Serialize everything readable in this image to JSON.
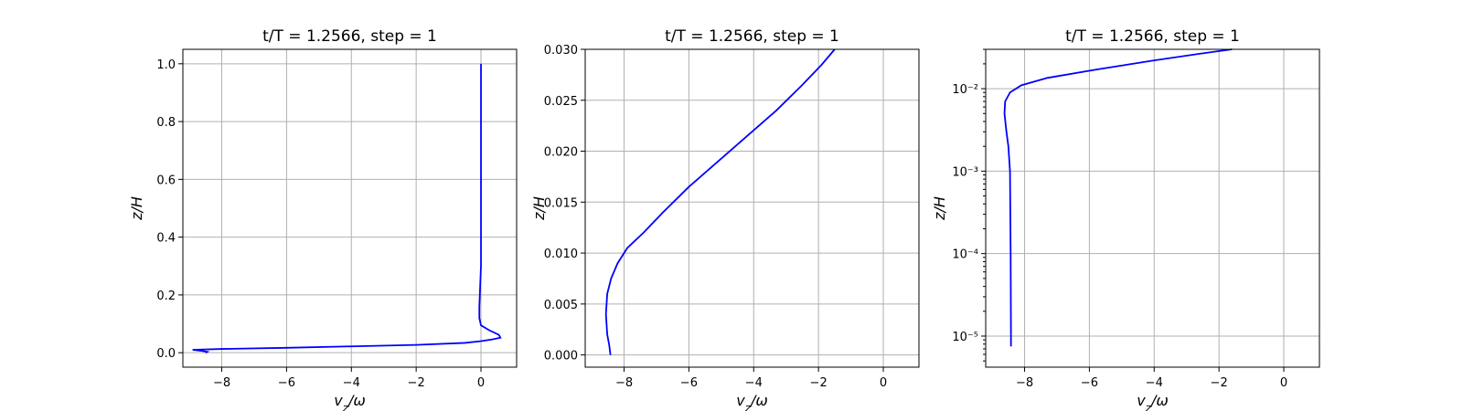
{
  "chart_data": [
    {
      "type": "line",
      "title": "t/T = 1.2566, step = 1",
      "xlabel": "v_z/ω",
      "ylabel": "z/H",
      "xlim": [
        -9.2,
        1.1
      ],
      "ylim": [
        -0.05,
        1.05
      ],
      "yscale": "linear",
      "grid": true,
      "xticks": [
        -8,
        -6,
        -4,
        -2,
        0
      ],
      "xtick_labels": [
        "−8",
        "−6",
        "−4",
        "−2",
        "0"
      ],
      "yticks": [
        0.0,
        0.2,
        0.4,
        0.6,
        0.8,
        1.0
      ],
      "ytick_labels": [
        "0.0",
        "0.2",
        "0.4",
        "0.6",
        "0.8",
        "1.0"
      ],
      "series": [
        {
          "color": "#0000ff",
          "x": [
            -8.5,
            -8.45,
            -8.6,
            -8.9,
            -8.0,
            -6.0,
            -4.0,
            -2.0,
            -0.5,
            0.0,
            0.35,
            0.6,
            0.55,
            0.25,
            0.0,
            -0.05,
            -0.05,
            0.0,
            0.0,
            0.0
          ],
          "y": [
            0.0,
            0.003,
            0.006,
            0.01,
            0.013,
            0.017,
            0.022,
            0.027,
            0.034,
            0.04,
            0.046,
            0.052,
            0.062,
            0.078,
            0.095,
            0.12,
            0.16,
            0.3,
            0.6,
            1.0
          ]
        }
      ]
    },
    {
      "type": "line",
      "title": "t/T = 1.2566, step = 1",
      "xlabel": "v_z/ω",
      "ylabel": "z/H",
      "xlim": [
        -9.2,
        1.1
      ],
      "ylim": [
        -0.0012,
        0.03
      ],
      "yscale": "linear",
      "grid": true,
      "xticks": [
        -8,
        -6,
        -4,
        -2,
        0
      ],
      "xtick_labels": [
        "−8",
        "−6",
        "−4",
        "−2",
        "0"
      ],
      "yticks": [
        0.0,
        0.005,
        0.01,
        0.015,
        0.02,
        0.025,
        0.03
      ],
      "ytick_labels": [
        "0.000",
        "0.005",
        "0.010",
        "0.015",
        "0.020",
        "0.025",
        "0.030"
      ],
      "series": [
        {
          "color": "#0000ff",
          "x": [
            -8.42,
            -8.46,
            -8.52,
            -8.56,
            -8.52,
            -8.4,
            -8.2,
            -7.9,
            -7.4,
            -6.8,
            -6.0,
            -5.1,
            -4.2,
            -3.3,
            -2.5,
            -1.9,
            -1.5
          ],
          "y": [
            0.0,
            0.001,
            0.002,
            0.004,
            0.006,
            0.0075,
            0.009,
            0.0105,
            0.012,
            0.014,
            0.0165,
            0.019,
            0.0215,
            0.024,
            0.0265,
            0.0285,
            0.03
          ]
        }
      ]
    },
    {
      "type": "line",
      "title": "t/T = 1.2566, step = 1",
      "xlabel": "v_z/ω",
      "ylabel": "z/H",
      "xlim": [
        -9.2,
        1.1
      ],
      "ylim": [
        4.2e-06,
        0.03
      ],
      "yscale": "log",
      "grid": true,
      "xticks": [
        -8,
        -6,
        -4,
        -2,
        0
      ],
      "xtick_labels": [
        "−8",
        "−6",
        "−4",
        "−2",
        "0"
      ],
      "yticks": [
        1e-05,
        0.0001,
        0.001,
        0.01
      ],
      "ytick_labels": [
        "10⁻⁵",
        "10⁻⁴",
        "10⁻³",
        "10⁻²"
      ],
      "series": [
        {
          "color": "#0000ff",
          "x": [
            -8.42,
            -8.42,
            -8.43,
            -8.45,
            -8.5,
            -8.56,
            -8.62,
            -8.6,
            -8.45,
            -8.1,
            -7.3,
            -5.8,
            -4.0,
            -2.6,
            -1.6
          ],
          "y": [
            7.5e-06,
            1e-05,
            0.0001,
            0.001,
            0.002,
            0.003,
            0.005,
            0.007,
            0.009,
            0.011,
            0.0135,
            0.017,
            0.022,
            0.0265,
            0.03
          ]
        }
      ]
    }
  ]
}
